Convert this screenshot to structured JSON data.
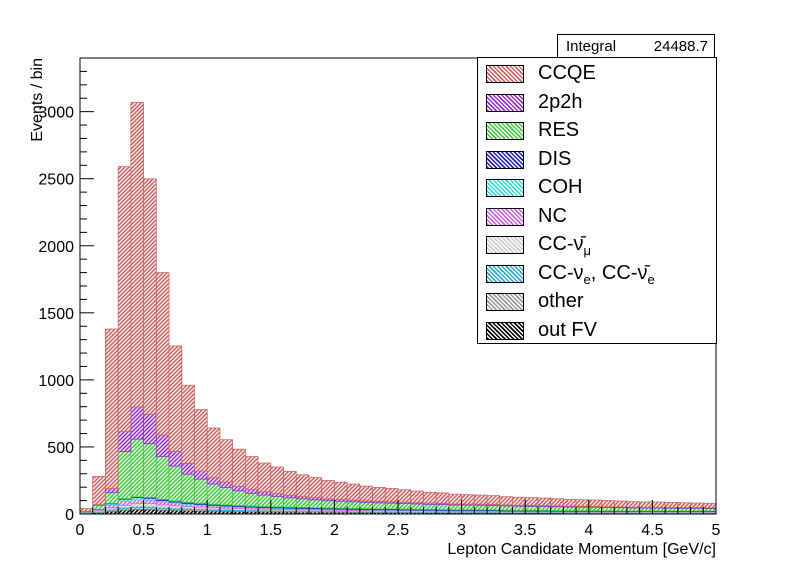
{
  "chart_data": {
    "type": "bar",
    "stacked": true,
    "title": "",
    "xlabel": "Lepton Candidate Momentum [GeV/c]",
    "ylabel": "Events / bin",
    "xlim": [
      0,
      5
    ],
    "ylim": [
      0,
      3400
    ],
    "xticks": [
      "0",
      "0.5",
      "1",
      "1.5",
      "2",
      "2.5",
      "3",
      "3.5",
      "4",
      "4.5",
      "5"
    ],
    "yticks": [
      "0",
      "500",
      "1000",
      "1500",
      "2000",
      "2500",
      "3000"
    ],
    "bin_edges": [
      0,
      0.1,
      0.2,
      0.3,
      0.4,
      0.5,
      0.6,
      0.7,
      0.8,
      0.9,
      1.0,
      1.1,
      1.2,
      1.3,
      1.4,
      1.5,
      1.6,
      1.7,
      1.8,
      1.9,
      2.0,
      2.1,
      2.2,
      2.3,
      2.4,
      2.5,
      2.6,
      2.7,
      2.8,
      2.9,
      3.0,
      3.1,
      3.2,
      3.3,
      3.4,
      3.5,
      3.6,
      3.7,
      3.8,
      3.9,
      4.0,
      4.1,
      4.2,
      4.3,
      4.4,
      4.5,
      4.6,
      4.7,
      4.8,
      4.9,
      5.0
    ],
    "series": [
      {
        "name": "out FV",
        "color": "#000000",
        "values": [
          5,
          10,
          20,
          30,
          35,
          35,
          30,
          28,
          26,
          24,
          22,
          20,
          19,
          18,
          17,
          16,
          15,
          14,
          14,
          13,
          13,
          12,
          12,
          11,
          11,
          11,
          10,
          10,
          10,
          9,
          9,
          9,
          9,
          8,
          8,
          8,
          8,
          8,
          7,
          7,
          7,
          7,
          7,
          6,
          6,
          6,
          6,
          6,
          6,
          6
        ]
      },
      {
        "name": "other",
        "color": "#999999",
        "values": [
          2,
          4,
          8,
          10,
          12,
          12,
          10,
          9,
          8,
          8,
          7,
          7,
          6,
          6,
          6,
          5,
          5,
          5,
          5,
          5,
          4,
          4,
          4,
          4,
          4,
          4,
          4,
          3,
          3,
          3,
          3,
          3,
          3,
          3,
          3,
          3,
          3,
          3,
          3,
          3,
          3,
          2,
          2,
          2,
          2,
          2,
          2,
          2,
          2,
          2
        ]
      },
      {
        "name": "CC-νe, CC-ν̄e",
        "color": "#33aacc",
        "values": [
          2,
          4,
          8,
          10,
          12,
          12,
          11,
          10,
          9,
          8,
          8,
          7,
          7,
          6,
          6,
          6,
          6,
          5,
          5,
          5,
          5,
          5,
          5,
          4,
          4,
          4,
          4,
          4,
          4,
          4,
          4,
          4,
          4,
          3,
          3,
          3,
          3,
          3,
          3,
          3,
          3,
          3,
          3,
          3,
          3,
          3,
          3,
          3,
          3,
          3
        ]
      },
      {
        "name": "CC-ν̄μ",
        "color": "#cccccc",
        "values": [
          2,
          5,
          10,
          15,
          18,
          18,
          16,
          14,
          12,
          11,
          10,
          9,
          9,
          8,
          8,
          7,
          7,
          7,
          6,
          6,
          6,
          6,
          5,
          5,
          5,
          5,
          5,
          5,
          4,
          4,
          4,
          4,
          4,
          4,
          4,
          4,
          4,
          3,
          3,
          3,
          3,
          3,
          3,
          3,
          3,
          3,
          3,
          3,
          3,
          3
        ]
      },
      {
        "name": "NC",
        "color": "#cc66dd",
        "values": [
          3,
          8,
          20,
          30,
          30,
          28,
          24,
          20,
          17,
          15,
          13,
          12,
          11,
          10,
          9,
          9,
          8,
          8,
          7,
          7,
          7,
          6,
          6,
          6,
          6,
          5,
          5,
          5,
          5,
          5,
          5,
          5,
          4,
          4,
          4,
          4,
          4,
          4,
          4,
          4,
          4,
          4,
          3,
          3,
          3,
          3,
          3,
          3,
          3,
          3
        ]
      },
      {
        "name": "COH",
        "color": "#33dddd",
        "values": [
          1,
          3,
          10,
          15,
          15,
          12,
          10,
          8,
          7,
          6,
          5,
          5,
          4,
          4,
          3,
          3,
          3,
          3,
          3,
          2,
          2,
          2,
          2,
          2,
          2,
          2,
          2,
          2,
          2,
          1,
          1,
          1,
          1,
          1,
          1,
          1,
          1,
          1,
          1,
          1,
          1,
          1,
          1,
          1,
          1,
          1,
          1,
          1,
          1,
          1
        ]
      },
      {
        "name": "DIS",
        "color": "#2222bb",
        "values": [
          0,
          1,
          3,
          5,
          6,
          7,
          8,
          8,
          8,
          8,
          8,
          8,
          7,
          7,
          7,
          7,
          7,
          7,
          6,
          6,
          6,
          6,
          6,
          6,
          6,
          5,
          5,
          5,
          5,
          5,
          5,
          5,
          5,
          5,
          4,
          4,
          4,
          4,
          4,
          4,
          4,
          4,
          4,
          4,
          4,
          4,
          4,
          4,
          4,
          4
        ]
      },
      {
        "name": "RES",
        "color": "#44cc44",
        "values": [
          5,
          30,
          80,
          350,
          430,
          400,
          320,
          260,
          210,
          180,
          150,
          130,
          110,
          95,
          85,
          78,
          70,
          64,
          60,
          55,
          52,
          50,
          47,
          45,
          43,
          42,
          40,
          38,
          37,
          36,
          35,
          34,
          33,
          32,
          31,
          30,
          29,
          28,
          27,
          26,
          25,
          24,
          24,
          23,
          22,
          22,
          21,
          20,
          20,
          19
        ]
      },
      {
        "name": "2p2h",
        "color": "#9933cc",
        "values": [
          0,
          5,
          30,
          150,
          240,
          220,
          160,
          110,
          80,
          60,
          48,
          40,
          33,
          28,
          24,
          21,
          19,
          17,
          15,
          14,
          13,
          12,
          11,
          11,
          10,
          10,
          9,
          9,
          9,
          8,
          8,
          8,
          8,
          7,
          7,
          7,
          7,
          7,
          6,
          6,
          6,
          6,
          6,
          5,
          5,
          5,
          5,
          5,
          5,
          5
        ]
      },
      {
        "name": "CCQE",
        "color": "#cc6666",
        "values": [
          20,
          210,
          1190,
          1975,
          2270,
          1755,
          1211,
          786,
          583,
          459,
          370,
          316,
          277,
          246,
          215,
          198,
          178,
          162,
          150,
          137,
          129,
          120,
          110,
          104,
          100,
          93,
          87,
          81,
          78,
          73,
          70,
          68,
          66,
          62,
          60,
          58,
          56,
          53,
          51,
          49,
          48,
          46,
          44,
          42,
          41,
          40,
          38,
          37,
          35,
          34
        ]
      }
    ],
    "stats": {
      "name": "Integral",
      "value": "24488.7"
    },
    "legend": {
      "position": "top-right",
      "entries": [
        {
          "label": "CCQE",
          "color": "#cc6666"
        },
        {
          "label": "2p2h",
          "color": "#9933cc"
        },
        {
          "label": "RES",
          "color": "#44cc44"
        },
        {
          "label": "DIS",
          "color": "#2222bb"
        },
        {
          "label": "COH",
          "color": "#33dddd"
        },
        {
          "label": "NC",
          "color": "#cc66dd"
        },
        {
          "label": "CC-ν̄μ",
          "color": "#cccccc"
        },
        {
          "label": "CC-νe, CC-ν̄e",
          "color": "#33aacc"
        },
        {
          "label": "other",
          "color": "#999999"
        },
        {
          "label": "out FV",
          "color": "#000000"
        }
      ]
    }
  }
}
